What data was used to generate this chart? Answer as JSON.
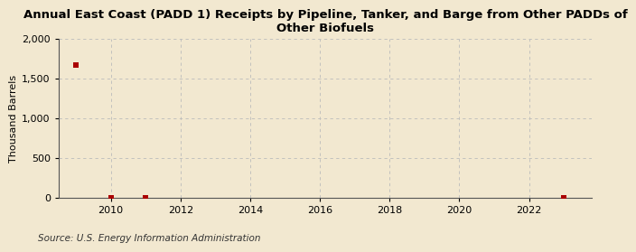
{
  "title": "Annual East Coast (PADD 1) Receipts by Pipeline, Tanker, and Barge from Other PADDs of\nOther Biofuels",
  "ylabel": "Thousand Barrels",
  "source": "Source: U.S. Energy Information Administration",
  "background_color": "#f2e8d0",
  "plot_background_color": "#f2e8d0",
  "data_x": [
    2009,
    2010,
    2011,
    2023
  ],
  "data_y": [
    1672,
    5,
    5,
    5
  ],
  "marker_color": "#aa0000",
  "marker_size": 4,
  "xlim": [
    2008.5,
    2023.8
  ],
  "ylim": [
    0,
    2000
  ],
  "yticks": [
    0,
    500,
    1000,
    1500,
    2000
  ],
  "xticks": [
    2010,
    2012,
    2014,
    2016,
    2018,
    2020,
    2022
  ],
  "grid_color": "#bbbbbb",
  "grid_linestyle": "--",
  "title_fontsize": 9.5,
  "axis_fontsize": 8,
  "tick_fontsize": 8,
  "source_fontsize": 7.5
}
